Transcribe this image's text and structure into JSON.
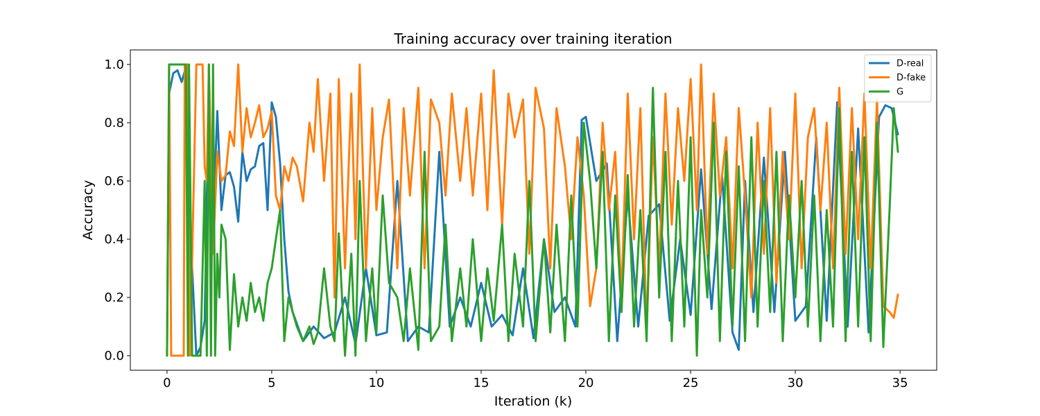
{
  "chart_data": {
    "type": "line",
    "title": "Training accuracy over training iteration",
    "xlabel": "Iteration (k)",
    "ylabel": "Accuracy",
    "xlim": [
      -1.75,
      36.75
    ],
    "ylim": [
      -0.05,
      1.05
    ],
    "xticks": [
      0,
      5,
      10,
      15,
      20,
      25,
      30,
      35
    ],
    "yticks": [
      0.0,
      0.2,
      0.4,
      0.6,
      0.8,
      1.0
    ],
    "xtick_labels": [
      "0",
      "5",
      "10",
      "15",
      "20",
      "25",
      "30",
      "35"
    ],
    "ytick_labels": [
      "0.0",
      "0.2",
      "0.4",
      "0.6",
      "0.8",
      "1.0"
    ],
    "grid": false,
    "legend_position": "top-right",
    "series": [
      {
        "name": "D-real",
        "color": "#1f77b4",
        "x": [
          0,
          0.1,
          0.3,
          0.5,
          0.7,
          0.9,
          1.0,
          1.2,
          1.4,
          1.6,
          1.8,
          2.0,
          2.2,
          2.4,
          2.6,
          2.8,
          3.0,
          3.2,
          3.4,
          3.6,
          3.8,
          4.0,
          4.2,
          4.4,
          4.6,
          4.8,
          5.0,
          5.2,
          5.4,
          5.6,
          5.8,
          6.0,
          6.5,
          7.0,
          7.5,
          8.0,
          8.5,
          9.0,
          9.5,
          10.0,
          10.5,
          11.0,
          11.5,
          12.0,
          12.5,
          13.0,
          13.5,
          14.0,
          14.5,
          15.0,
          15.5,
          16.0,
          16.5,
          17.0,
          17.5,
          18.0,
          18.5,
          19.0,
          19.5,
          19.8,
          20.0,
          20.5,
          21.0,
          21.5,
          22.0,
          22.5,
          23.0,
          23.5,
          24.0,
          24.5,
          25.0,
          25.5,
          26.0,
          26.5,
          27.0,
          27.3,
          27.6,
          28.0,
          28.5,
          29.0,
          29.5,
          30.0,
          30.5,
          31.0,
          31.5,
          32.0,
          32.5,
          33.0,
          33.5,
          34.0,
          34.3,
          34.6,
          34.9
        ],
        "values": [
          0.0,
          0.9,
          0.97,
          0.98,
          0.94,
          0.99,
          0.68,
          0.3,
          0.0,
          0.03,
          0.12,
          0.92,
          0.45,
          0.84,
          0.5,
          0.62,
          0.63,
          0.58,
          0.46,
          0.7,
          0.6,
          0.64,
          0.65,
          0.72,
          0.73,
          0.5,
          0.87,
          0.82,
          0.66,
          0.4,
          0.22,
          0.15,
          0.05,
          0.1,
          0.06,
          0.08,
          0.2,
          0.04,
          0.3,
          0.07,
          0.08,
          0.6,
          0.05,
          0.1,
          0.08,
          0.7,
          0.1,
          0.2,
          0.1,
          0.25,
          0.1,
          0.14,
          0.07,
          0.3,
          0.06,
          0.4,
          0.15,
          0.2,
          0.1,
          0.81,
          0.82,
          0.6,
          0.66,
          0.05,
          0.55,
          0.1,
          0.48,
          0.52,
          0.12,
          0.4,
          0.14,
          0.64,
          0.16,
          0.62,
          0.08,
          0.02,
          0.6,
          0.15,
          0.68,
          0.15,
          0.7,
          0.12,
          0.17,
          0.75,
          0.12,
          0.87,
          0.1,
          0.78,
          0.08,
          0.82,
          0.86,
          0.85,
          0.76
        ]
      },
      {
        "name": "D-fake",
        "color": "#ff7f0e",
        "x": [
          0,
          0.1,
          0.2,
          0.8,
          0.85,
          1.0,
          1.1,
          1.4,
          1.7,
          1.8,
          1.9,
          2.0,
          2.2,
          2.4,
          2.6,
          2.8,
          3.0,
          3.2,
          3.4,
          3.6,
          3.8,
          4.0,
          4.2,
          4.4,
          4.6,
          4.8,
          5.0,
          5.2,
          5.4,
          5.6,
          5.8,
          6.0,
          6.2,
          6.5,
          6.8,
          7.0,
          7.2,
          7.5,
          7.8,
          8.0,
          8.2,
          8.5,
          8.8,
          9.0,
          9.2,
          9.5,
          9.8,
          10.0,
          10.3,
          10.6,
          11.0,
          11.3,
          11.6,
          12.0,
          12.3,
          12.6,
          13.0,
          13.3,
          13.6,
          14.0,
          14.3,
          14.6,
          15.0,
          15.3,
          15.6,
          16.0,
          16.3,
          16.6,
          17.0,
          17.3,
          17.6,
          18.0,
          18.3,
          18.6,
          19.0,
          19.3,
          19.6,
          19.9,
          20.2,
          20.5,
          20.8,
          21.1,
          21.4,
          21.7,
          22.0,
          22.3,
          22.6,
          22.9,
          23.2,
          23.5,
          23.8,
          24.1,
          24.4,
          24.7,
          25.0,
          25.3,
          25.5,
          25.8,
          26.1,
          26.4,
          26.7,
          27.0,
          27.3,
          27.6,
          27.9,
          28.2,
          28.5,
          28.8,
          29.1,
          29.4,
          29.7,
          30.0,
          30.3,
          30.6,
          30.9,
          31.2,
          31.5,
          31.8,
          32.1,
          32.4,
          32.7,
          33.0,
          33.3,
          33.6,
          33.9,
          34.2,
          34.5,
          34.7,
          34.9
        ],
        "values": [
          0.0,
          1.0,
          0.0,
          0.0,
          1.0,
          1.0,
          0.0,
          1.0,
          1.0,
          0.65,
          0.6,
          1.0,
          0.35,
          0.7,
          0.6,
          0.62,
          0.77,
          0.72,
          1.0,
          0.7,
          0.85,
          0.75,
          0.8,
          0.86,
          0.75,
          0.78,
          0.84,
          0.55,
          0.5,
          0.65,
          0.6,
          0.68,
          0.65,
          0.53,
          0.8,
          0.7,
          0.95,
          0.6,
          0.9,
          0.2,
          0.95,
          0.3,
          0.9,
          0.4,
          1.0,
          0.3,
          0.85,
          0.5,
          0.75,
          0.88,
          0.3,
          0.85,
          0.55,
          0.92,
          0.3,
          0.88,
          0.8,
          0.55,
          0.9,
          0.6,
          0.85,
          0.55,
          0.9,
          0.5,
          0.98,
          0.45,
          0.9,
          0.75,
          0.88,
          0.35,
          0.92,
          0.78,
          0.3,
          0.85,
          0.65,
          0.4,
          0.75,
          0.55,
          0.17,
          0.3,
          0.8,
          0.5,
          0.7,
          0.2,
          0.9,
          0.4,
          0.85,
          0.08,
          0.75,
          0.3,
          0.9,
          0.45,
          0.85,
          0.6,
          0.95,
          0.5,
          1.0,
          0.35,
          0.9,
          0.55,
          0.75,
          0.3,
          0.85,
          0.55,
          0.2,
          0.8,
          0.35,
          0.85,
          0.25,
          0.7,
          0.4,
          0.9,
          0.3,
          0.75,
          0.85,
          0.5,
          0.8,
          0.3,
          0.92,
          0.35,
          0.85,
          0.4,
          0.9,
          0.3,
          0.88,
          0.17,
          0.15,
          0.13,
          0.21
        ]
      },
      {
        "name": "G",
        "color": "#2ca02c",
        "x": [
          0,
          0.1,
          0.3,
          0.5,
          0.7,
          0.9,
          1.0,
          1.05,
          1.2,
          1.4,
          1.6,
          1.8,
          1.9,
          2.0,
          2.1,
          2.2,
          2.3,
          2.4,
          2.5,
          2.6,
          2.8,
          3.0,
          3.2,
          3.4,
          3.6,
          3.8,
          4.0,
          4.2,
          4.4,
          4.6,
          4.8,
          5.0,
          5.2,
          5.4,
          5.6,
          5.8,
          6.0,
          6.2,
          6.5,
          6.8,
          7.0,
          7.2,
          7.5,
          7.8,
          8.0,
          8.2,
          8.5,
          8.8,
          9.0,
          9.2,
          9.5,
          9.8,
          10.0,
          10.3,
          10.6,
          11.0,
          11.3,
          11.6,
          12.0,
          12.3,
          12.6,
          13.0,
          13.3,
          13.6,
          14.0,
          14.3,
          14.6,
          15.0,
          15.3,
          15.6,
          16.0,
          16.3,
          16.6,
          17.0,
          17.3,
          17.6,
          18.0,
          18.3,
          18.6,
          19.0,
          19.3,
          19.6,
          19.9,
          20.2,
          20.5,
          20.8,
          21.1,
          21.4,
          21.7,
          22.0,
          22.3,
          22.6,
          22.9,
          23.2,
          23.5,
          23.8,
          24.1,
          24.4,
          24.7,
          25.0,
          25.3,
          25.5,
          25.8,
          26.1,
          26.4,
          26.7,
          27.0,
          27.3,
          27.6,
          27.9,
          28.2,
          28.5,
          28.8,
          29.1,
          29.4,
          29.7,
          30.0,
          30.3,
          30.6,
          30.9,
          31.2,
          31.5,
          31.8,
          32.1,
          32.4,
          32.7,
          33.0,
          33.3,
          33.6,
          33.9,
          34.2,
          34.5,
          34.7,
          34.9
        ],
        "values": [
          0.0,
          1.0,
          1.0,
          1.0,
          1.0,
          1.0,
          0.0,
          1.0,
          0.0,
          0.0,
          0.0,
          0.6,
          0.0,
          1.0,
          0.0,
          1.0,
          0.0,
          0.35,
          0.2,
          0.45,
          0.4,
          0.02,
          0.28,
          0.1,
          0.2,
          0.12,
          0.25,
          0.15,
          0.2,
          0.12,
          0.25,
          0.3,
          0.4,
          0.5,
          0.05,
          0.2,
          0.15,
          0.1,
          0.05,
          0.1,
          0.04,
          0.08,
          0.3,
          0.1,
          0.05,
          0.42,
          0.0,
          0.35,
          0.0,
          0.6,
          0.05,
          0.3,
          0.08,
          0.55,
          0.25,
          0.2,
          0.05,
          0.3,
          0.02,
          0.7,
          0.05,
          0.1,
          0.45,
          0.05,
          0.3,
          0.1,
          0.4,
          0.05,
          0.3,
          0.12,
          0.45,
          0.05,
          0.35,
          0.1,
          0.6,
          0.05,
          0.4,
          0.08,
          0.45,
          0.05,
          0.55,
          0.1,
          0.8,
          0.6,
          0.3,
          0.7,
          0.05,
          0.55,
          0.15,
          0.62,
          0.1,
          0.5,
          0.05,
          0.92,
          0.2,
          0.7,
          0.05,
          0.6,
          0.1,
          0.75,
          0.0,
          0.5,
          0.2,
          0.8,
          0.05,
          0.7,
          0.1,
          0.65,
          0.05,
          0.75,
          0.1,
          0.6,
          0.15,
          0.7,
          0.05,
          0.55,
          0.2,
          0.6,
          0.1,
          0.55,
          0.05,
          0.5,
          0.1,
          0.85,
          0.05,
          0.7,
          0.1,
          0.75,
          0.05,
          0.8,
          0.03,
          0.5,
          0.85,
          0.7
        ]
      }
    ]
  }
}
